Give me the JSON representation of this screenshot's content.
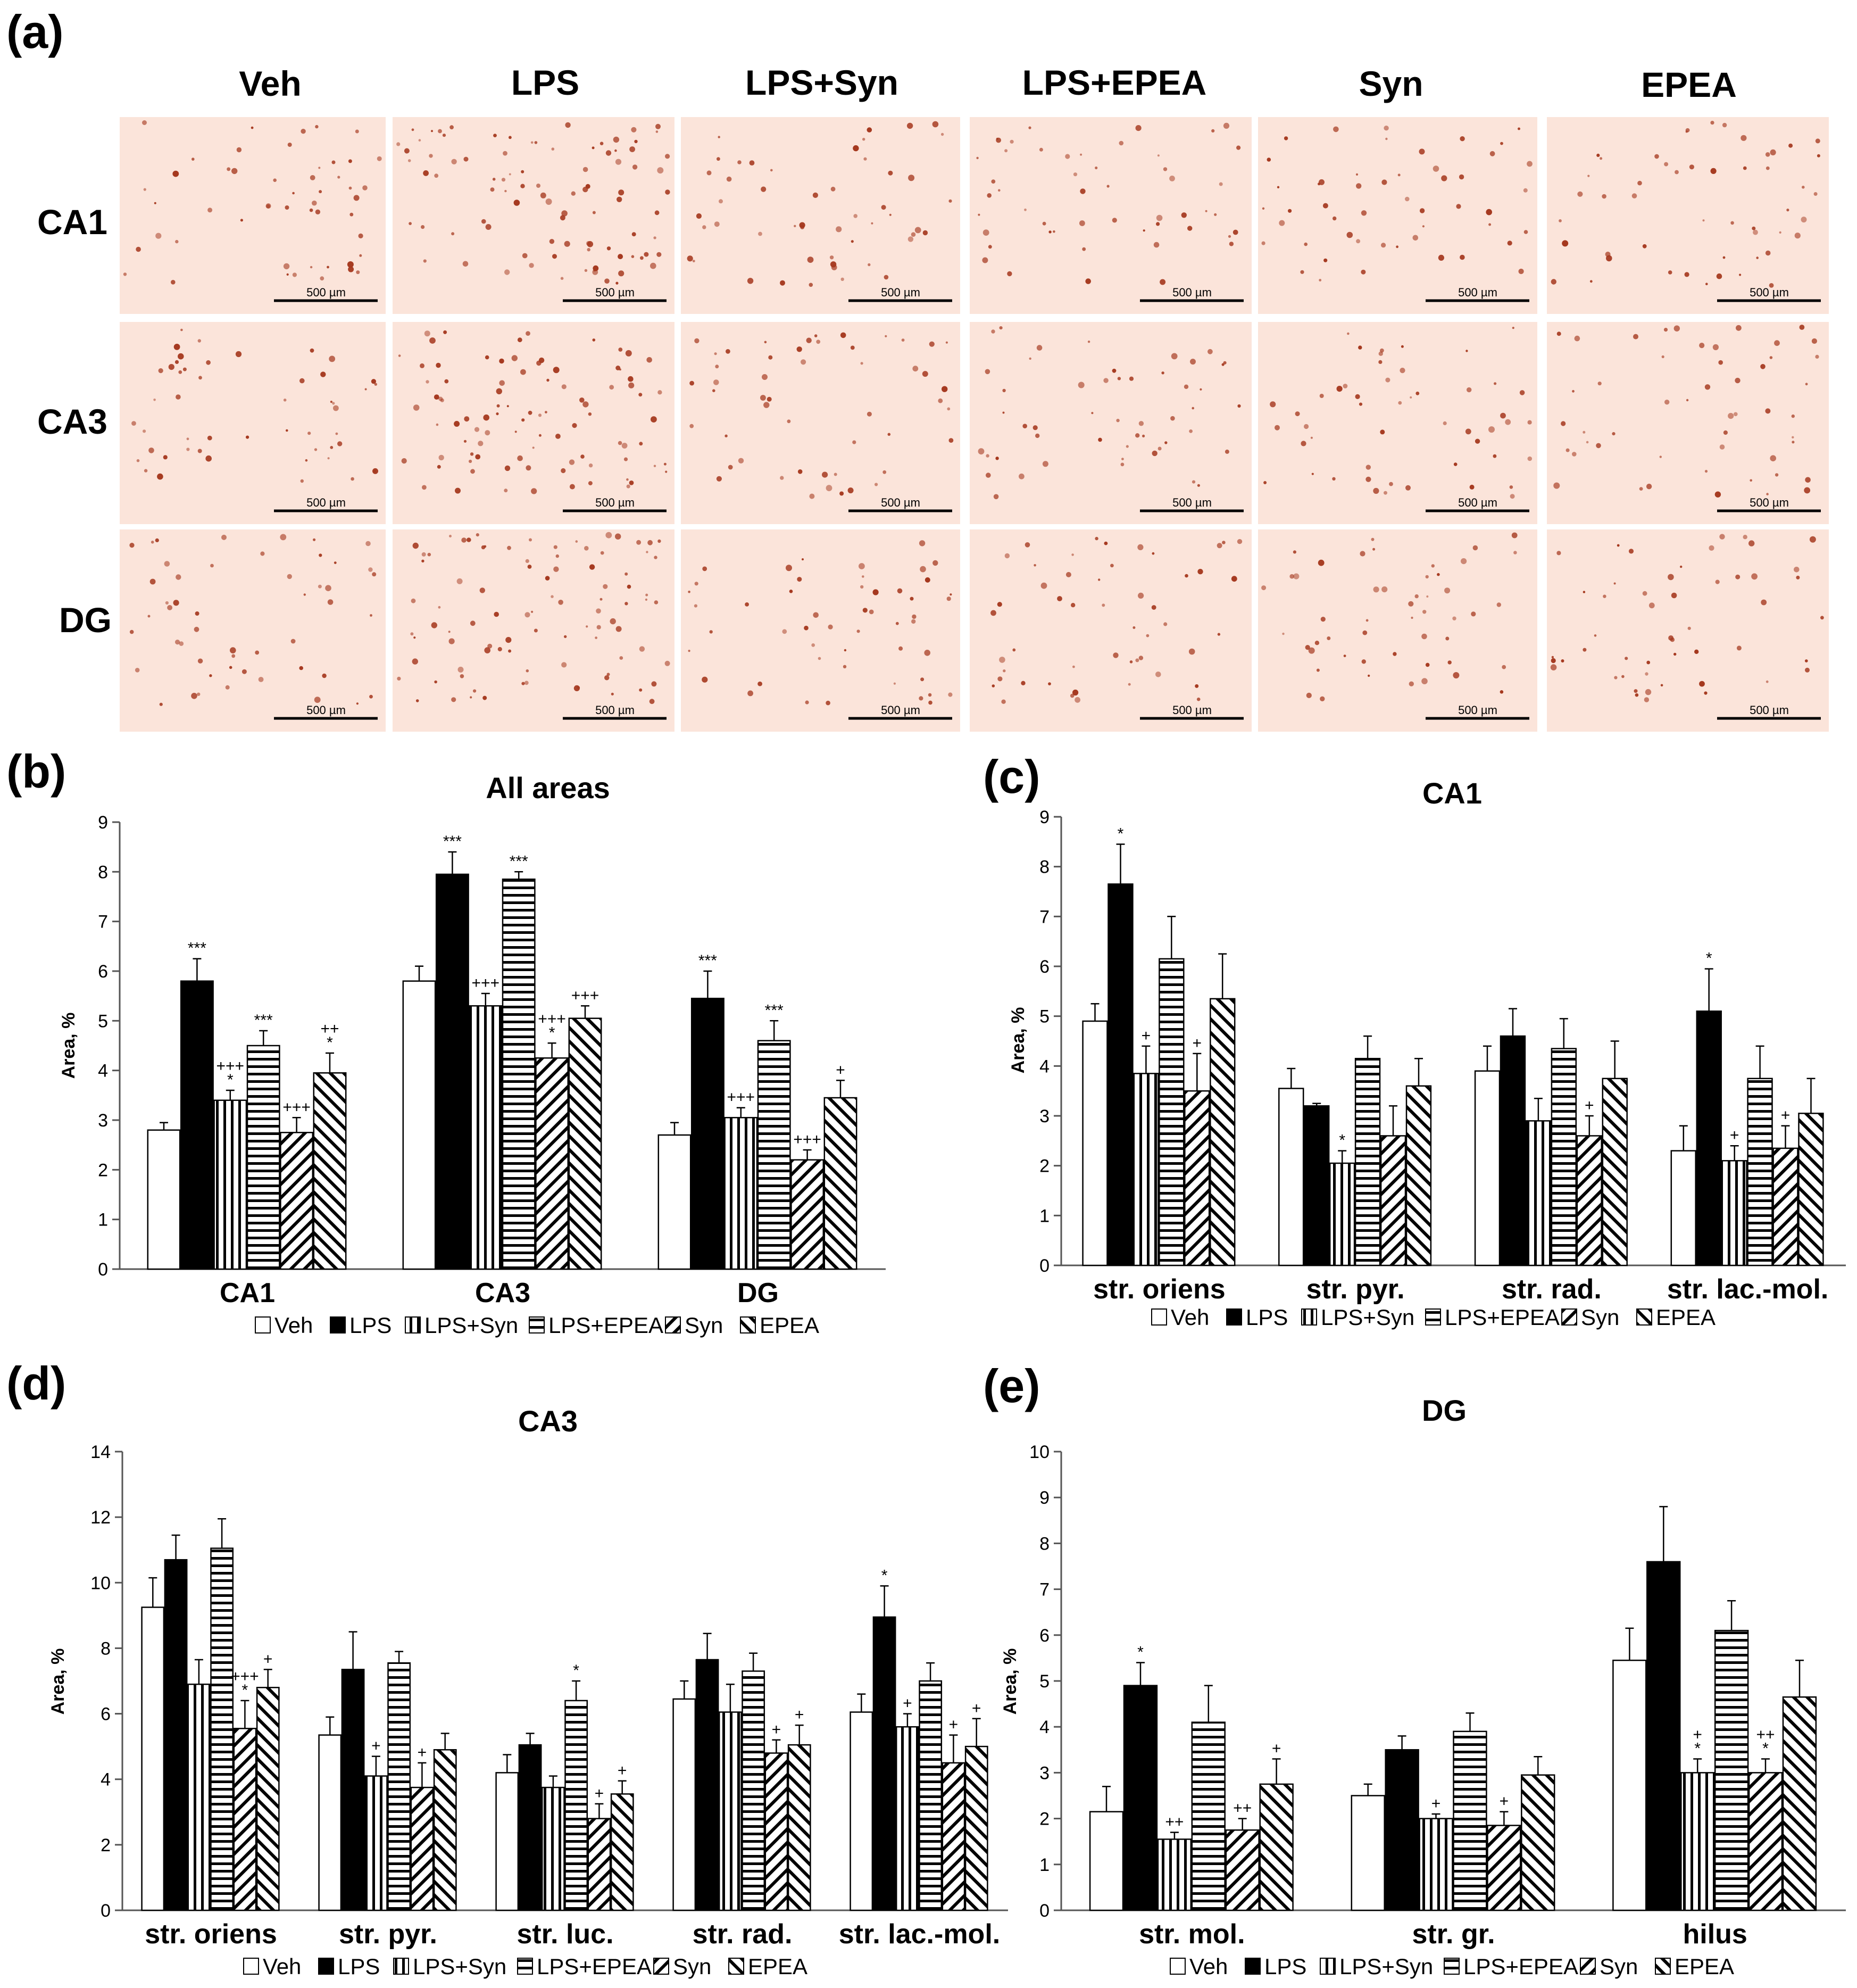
{
  "panel_a": {
    "label": "(a)",
    "columns": [
      "Veh",
      "LPS",
      "LPS+Syn",
      "LPS+EPEA",
      "Syn",
      "EPEA"
    ],
    "rows": [
      "CA1",
      "CA3",
      "DG"
    ],
    "scale_bar": "500 µm"
  },
  "colors": {
    "bar_fill": "#ffffff",
    "bar_solid": "#000000",
    "micro_bg": "#fbe4da",
    "micro_cell": "#a5381e"
  },
  "chart_data": [
    {
      "id": "b",
      "panel_label": "(b)",
      "type": "bar",
      "title": "All areas",
      "ylabel": "Area, %",
      "ylim": [
        0,
        9
      ],
      "yticks": [
        0,
        1,
        2,
        3,
        4,
        5,
        6,
        7,
        8,
        9
      ],
      "categories": [
        "CA1",
        "CA3",
        "DG"
      ],
      "series": [
        {
          "name": "Veh",
          "pattern": "white",
          "values": [
            2.8,
            5.8,
            2.7
          ],
          "errors": [
            0.15,
            0.3,
            0.25
          ],
          "sig": [
            "",
            "",
            ""
          ]
        },
        {
          "name": "LPS",
          "pattern": "black",
          "values": [
            5.8,
            7.95,
            5.45
          ],
          "errors": [
            0.45,
            0.45,
            0.55
          ],
          "sig": [
            "***",
            "***",
            "***"
          ]
        },
        {
          "name": "LPS+Syn",
          "pattern": "vertical",
          "values": [
            3.4,
            5.3,
            3.05
          ],
          "errors": [
            0.2,
            0.25,
            0.2
          ],
          "sig": [
            "+++\n*",
            "+++",
            "+++"
          ]
        },
        {
          "name": "LPS+EPEA",
          "pattern": "horizontal",
          "values": [
            4.5,
            7.85,
            4.6
          ],
          "errors": [
            0.3,
            0.15,
            0.4
          ],
          "sig": [
            "***",
            "***",
            "***"
          ]
        },
        {
          "name": "Syn",
          "pattern": "diag-up",
          "values": [
            2.75,
            4.25,
            2.2
          ],
          "errors": [
            0.3,
            0.3,
            0.2
          ],
          "sig": [
            "+++",
            "+++\n*",
            "+++"
          ]
        },
        {
          "name": "EPEA",
          "pattern": "diag-down",
          "values": [
            3.95,
            5.05,
            3.45
          ],
          "errors": [
            0.4,
            0.25,
            0.35
          ],
          "sig": [
            "++\n*",
            "+++",
            "+"
          ]
        }
      ]
    },
    {
      "id": "c",
      "panel_label": "(c)",
      "type": "bar",
      "title": "CA1",
      "ylabel": "Area, %",
      "ylim": [
        0,
        9
      ],
      "yticks": [
        0,
        1,
        2,
        3,
        4,
        5,
        6,
        7,
        8,
        9
      ],
      "categories": [
        "str. oriens",
        "str. pyr.",
        "str. rad.",
        "str. lac.-mol."
      ],
      "series": [
        {
          "name": "Veh",
          "pattern": "white",
          "values": [
            4.9,
            3.55,
            3.9,
            2.3
          ],
          "errors": [
            0.35,
            0.4,
            0.5,
            0.5
          ],
          "sig": [
            "",
            "",
            "",
            ""
          ]
        },
        {
          "name": "LPS",
          "pattern": "black",
          "values": [
            7.65,
            3.2,
            4.6,
            5.1
          ],
          "errors": [
            0.8,
            0.05,
            0.55,
            0.85
          ],
          "sig": [
            "*",
            "",
            "",
            "*"
          ]
        },
        {
          "name": "LPS+Syn",
          "pattern": "vertical",
          "values": [
            3.85,
            2.05,
            2.9,
            2.1
          ],
          "errors": [
            0.55,
            0.25,
            0.45,
            0.3
          ],
          "sig": [
            "+",
            "*",
            "",
            "+"
          ]
        },
        {
          "name": "LPS+EPEA",
          "pattern": "horizontal",
          "values": [
            6.15,
            4.15,
            4.35,
            3.75
          ],
          "errors": [
            0.85,
            0.45,
            0.6,
            0.65
          ],
          "sig": [
            "",
            "",
            "",
            ""
          ]
        },
        {
          "name": "Syn",
          "pattern": "diag-up",
          "values": [
            3.5,
            2.6,
            2.6,
            2.35
          ],
          "errors": [
            0.75,
            0.6,
            0.4,
            0.45
          ],
          "sig": [
            "+",
            "",
            "+",
            "+"
          ]
        },
        {
          "name": "EPEA",
          "pattern": "diag-down",
          "values": [
            5.35,
            3.6,
            3.75,
            3.05
          ],
          "errors": [
            0.9,
            0.55,
            0.75,
            0.7
          ],
          "sig": [
            "",
            "",
            "",
            ""
          ]
        }
      ]
    },
    {
      "id": "d",
      "panel_label": "(d)",
      "type": "bar",
      "title": "CA3",
      "ylabel": "Area, %",
      "ylim": [
        0,
        14
      ],
      "yticks": [
        0,
        2,
        4,
        6,
        8,
        10,
        12,
        14
      ],
      "categories": [
        "str. oriens",
        "str. pyr.",
        "str. luc.",
        "str. rad.",
        "str. lac.-mol."
      ],
      "series": [
        {
          "name": "Veh",
          "pattern": "white",
          "values": [
            9.25,
            5.35,
            4.2,
            6.45,
            6.05
          ],
          "errors": [
            0.9,
            0.55,
            0.55,
            0.55,
            0.55
          ],
          "sig": [
            "",
            "",
            "",
            "",
            ""
          ]
        },
        {
          "name": "LPS",
          "pattern": "black",
          "values": [
            10.7,
            7.35,
            5.05,
            7.65,
            8.95
          ],
          "errors": [
            0.75,
            1.15,
            0.35,
            0.8,
            0.95
          ],
          "sig": [
            "",
            "",
            "",
            "",
            "*"
          ]
        },
        {
          "name": "LPS+Syn",
          "pattern": "vertical",
          "values": [
            6.9,
            4.1,
            3.75,
            6.05,
            5.6
          ],
          "errors": [
            0.75,
            0.6,
            0.35,
            0.85,
            0.4
          ],
          "sig": [
            "",
            "+",
            "",
            "",
            "+"
          ]
        },
        {
          "name": "LPS+EPEA",
          "pattern": "horizontal",
          "values": [
            11.05,
            7.55,
            6.4,
            7.3,
            7.0
          ],
          "errors": [
            0.9,
            0.35,
            0.6,
            0.55,
            0.55
          ],
          "sig": [
            "",
            "",
            "*",
            "",
            ""
          ]
        },
        {
          "name": "Syn",
          "pattern": "diag-up",
          "values": [
            5.55,
            3.75,
            2.8,
            4.8,
            4.5
          ],
          "errors": [
            0.85,
            0.75,
            0.45,
            0.4,
            0.85
          ],
          "sig": [
            "+++\n*",
            "+",
            "+",
            "+",
            "+"
          ]
        },
        {
          "name": "EPEA",
          "pattern": "diag-down",
          "values": [
            6.8,
            4.9,
            3.55,
            5.05,
            5.0
          ],
          "errors": [
            0.55,
            0.5,
            0.4,
            0.6,
            0.85
          ],
          "sig": [
            "+",
            "",
            "+",
            "+",
            "+"
          ]
        }
      ]
    },
    {
      "id": "e",
      "panel_label": "(e)",
      "type": "bar",
      "title": "DG",
      "ylabel": "Area, %",
      "ylim": [
        0,
        10
      ],
      "yticks": [
        0,
        1,
        2,
        3,
        4,
        5,
        6,
        7,
        8,
        9,
        10
      ],
      "categories": [
        "str. mol.",
        "str. gr.",
        "hilus"
      ],
      "series": [
        {
          "name": "Veh",
          "pattern": "white",
          "values": [
            2.15,
            2.5,
            5.45
          ],
          "errors": [
            0.55,
            0.25,
            0.7
          ],
          "sig": [
            "",
            "",
            ""
          ]
        },
        {
          "name": "LPS",
          "pattern": "black",
          "values": [
            4.9,
            3.5,
            7.6
          ],
          "errors": [
            0.5,
            0.3,
            1.2
          ],
          "sig": [
            "*",
            "",
            ""
          ]
        },
        {
          "name": "LPS+Syn",
          "pattern": "vertical",
          "values": [
            1.55,
            2.0,
            3.0
          ],
          "errors": [
            0.15,
            0.1,
            0.3
          ],
          "sig": [
            "++",
            "+",
            "+\n*"
          ]
        },
        {
          "name": "LPS+EPEA",
          "pattern": "horizontal",
          "values": [
            4.1,
            3.9,
            6.1
          ],
          "errors": [
            0.8,
            0.4,
            0.65
          ],
          "sig": [
            "",
            "",
            ""
          ]
        },
        {
          "name": "Syn",
          "pattern": "diag-up",
          "values": [
            1.75,
            1.85,
            3.0
          ],
          "errors": [
            0.25,
            0.3,
            0.3
          ],
          "sig": [
            "++",
            "+",
            "++\n*"
          ]
        },
        {
          "name": "EPEA",
          "pattern": "diag-down",
          "values": [
            2.75,
            2.95,
            4.65
          ],
          "errors": [
            0.55,
            0.4,
            0.8
          ],
          "sig": [
            "+",
            "",
            ""
          ]
        }
      ]
    }
  ]
}
